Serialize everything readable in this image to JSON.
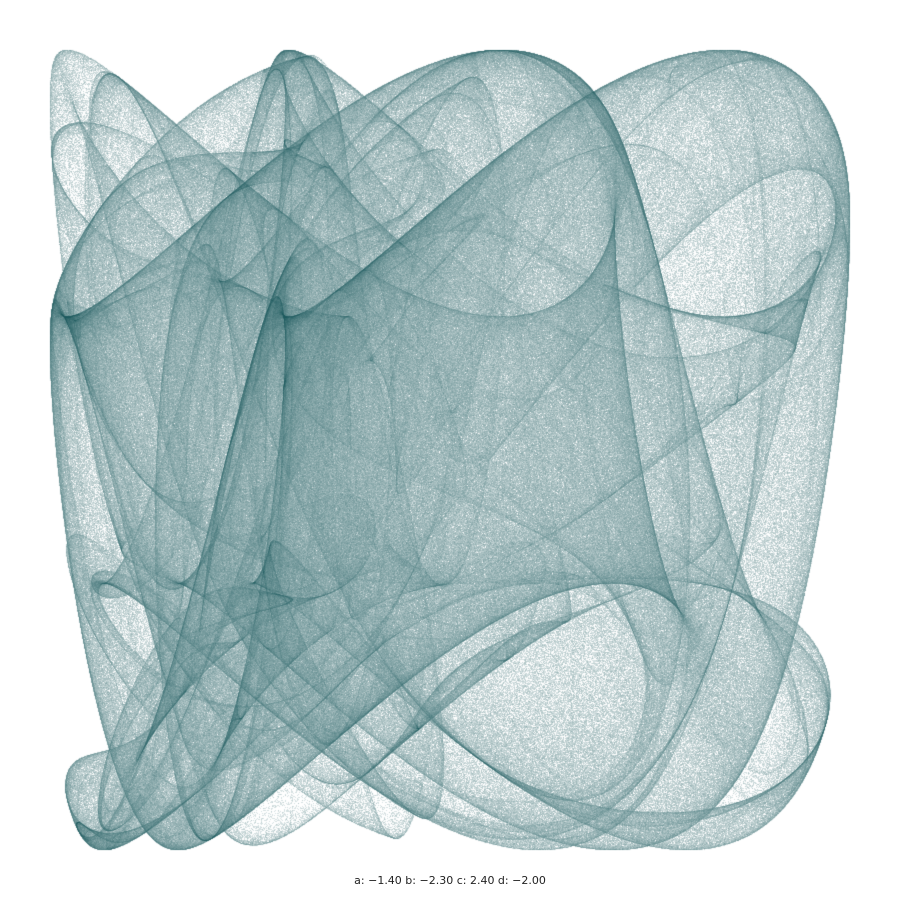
{
  "attractor": {
    "type": "clifford",
    "params": {
      "a": -1.4,
      "b": -2.3,
      "c": 2.4,
      "d": -2.0
    },
    "color": "#1d5a5e",
    "background": "#ffffff"
  },
  "caption": {
    "text": "a: −1.40 b: −2.30 c: 2.40 d: −2.00"
  }
}
